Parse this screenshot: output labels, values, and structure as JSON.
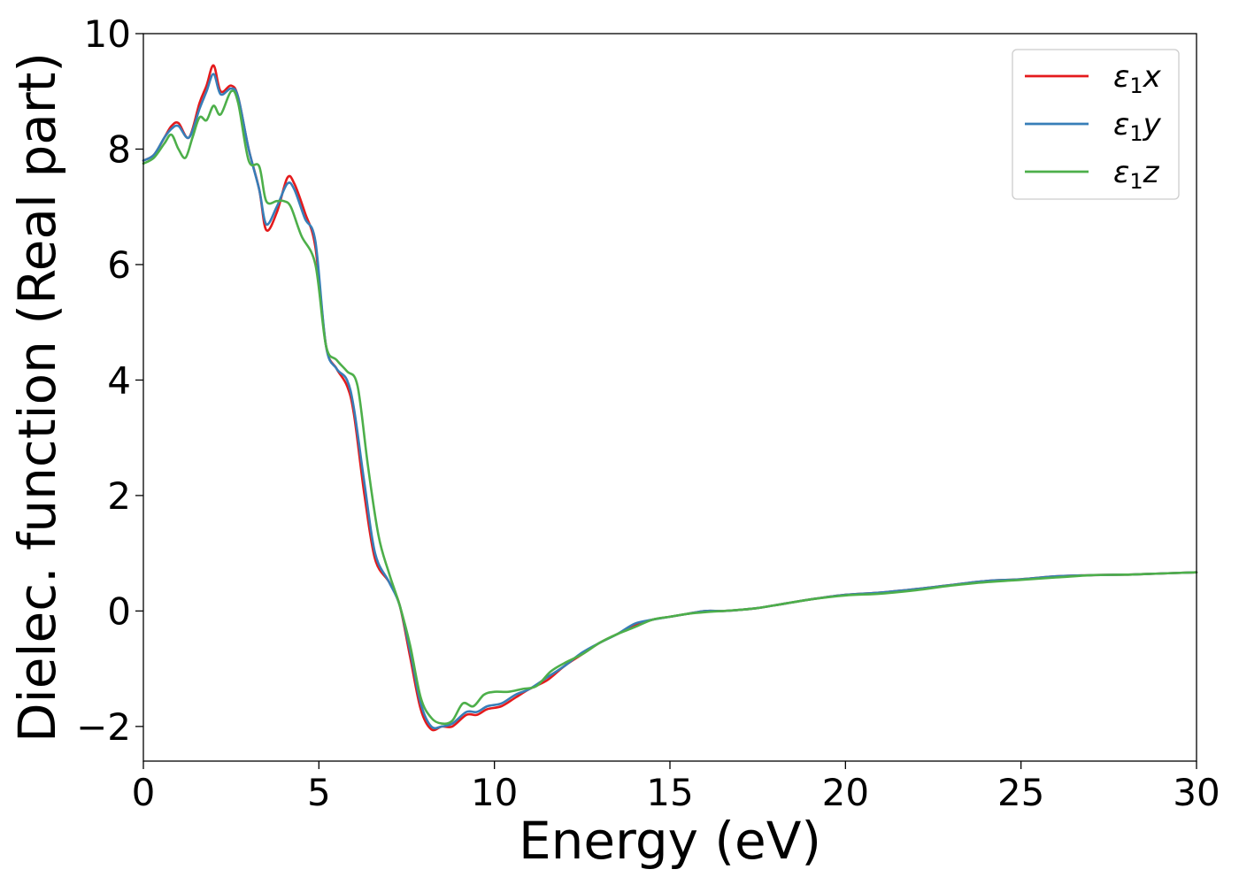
{
  "chart_data": {
    "type": "line",
    "title": "",
    "xlabel": "Energy (eV)",
    "ylabel": "Dielec. function (Real part)",
    "xlim": [
      0,
      30
    ],
    "ylim": [
      -2.6,
      10
    ],
    "xticks": [
      0,
      5,
      10,
      15,
      20,
      25,
      30
    ],
    "xtick_labels": [
      "0",
      "5",
      "10",
      "15",
      "20",
      "25",
      "30"
    ],
    "yticks": [
      -2,
      0,
      2,
      4,
      6,
      8,
      10
    ],
    "ytick_labels": [
      "−2",
      "0",
      "2",
      "4",
      "6",
      "8",
      "10"
    ],
    "grid": false,
    "legend_position": "top-right",
    "series": [
      {
        "name": "ε1x",
        "label_base": "ε",
        "label_sub": "1",
        "label_comp": "x",
        "color": "#e41a1c",
        "x": [
          0,
          0.3,
          0.6,
          0.8,
          1.0,
          1.3,
          1.6,
          1.8,
          2.0,
          2.2,
          2.5,
          2.7,
          3.0,
          3.3,
          3.5,
          3.8,
          4.1,
          4.3,
          4.6,
          4.9,
          5.2,
          5.5,
          5.8,
          6.0,
          6.3,
          6.6,
          7.0,
          7.3,
          7.6,
          7.9,
          8.2,
          8.5,
          8.8,
          9.2,
          9.5,
          9.8,
          10.2,
          10.6,
          11.0,
          11.5,
          12.0,
          12.5,
          13.0,
          13.5,
          14.0,
          14.5,
          15.0,
          15.5,
          16.0,
          16.5,
          17.0,
          17.5,
          18.0,
          19.0,
          20.0,
          21.0,
          22.0,
          23.0,
          24.0,
          25.0,
          26.0,
          27.0,
          28.0,
          29.0,
          30.0
        ],
        "y": [
          7.8,
          7.9,
          8.2,
          8.4,
          8.45,
          8.2,
          8.8,
          9.1,
          9.45,
          9.0,
          9.1,
          8.9,
          8.0,
          7.3,
          6.6,
          6.9,
          7.5,
          7.4,
          6.9,
          6.3,
          4.6,
          4.2,
          3.9,
          3.4,
          2.0,
          0.9,
          0.5,
          0.1,
          -0.8,
          -1.7,
          -2.05,
          -2.0,
          -2.0,
          -1.8,
          -1.8,
          -1.7,
          -1.65,
          -1.5,
          -1.35,
          -1.2,
          -0.95,
          -0.75,
          -0.55,
          -0.4,
          -0.25,
          -0.15,
          -0.1,
          -0.05,
          0.0,
          0.0,
          0.02,
          0.05,
          0.1,
          0.2,
          0.28,
          0.32,
          0.38,
          0.45,
          0.52,
          0.55,
          0.6,
          0.62,
          0.63,
          0.65,
          0.67
        ]
      },
      {
        "name": "ε1y",
        "label_base": "ε",
        "label_sub": "1",
        "label_comp": "y",
        "color": "#377eb8",
        "x": [
          0,
          0.3,
          0.6,
          0.8,
          1.0,
          1.3,
          1.6,
          1.8,
          2.0,
          2.2,
          2.5,
          2.7,
          3.0,
          3.3,
          3.5,
          3.8,
          4.1,
          4.3,
          4.6,
          4.9,
          5.2,
          5.5,
          5.8,
          6.0,
          6.3,
          6.6,
          7.0,
          7.3,
          7.6,
          7.9,
          8.2,
          8.5,
          8.8,
          9.2,
          9.5,
          9.8,
          10.2,
          10.6,
          11.0,
          11.5,
          12.0,
          12.5,
          13.0,
          13.5,
          14.0,
          14.5,
          15.0,
          15.5,
          16.0,
          16.5,
          17.0,
          17.5,
          18.0,
          19.0,
          20.0,
          21.0,
          22.0,
          23.0,
          24.0,
          25.0,
          26.0,
          27.0,
          28.0,
          29.0,
          30.0
        ],
        "y": [
          7.8,
          7.9,
          8.2,
          8.35,
          8.4,
          8.2,
          8.7,
          9.0,
          9.3,
          8.95,
          9.05,
          8.9,
          8.0,
          7.3,
          6.7,
          7.0,
          7.4,
          7.3,
          6.8,
          6.4,
          4.6,
          4.2,
          4.0,
          3.5,
          2.2,
          1.0,
          0.5,
          0.1,
          -0.7,
          -1.6,
          -2.0,
          -2.0,
          -1.95,
          -1.75,
          -1.75,
          -1.65,
          -1.6,
          -1.45,
          -1.35,
          -1.15,
          -0.95,
          -0.72,
          -0.55,
          -0.4,
          -0.22,
          -0.15,
          -0.1,
          -0.05,
          0.0,
          0.0,
          0.02,
          0.05,
          0.1,
          0.2,
          0.28,
          0.32,
          0.38,
          0.45,
          0.52,
          0.55,
          0.6,
          0.62,
          0.63,
          0.65,
          0.67
        ]
      },
      {
        "name": "ε1z",
        "label_base": "ε",
        "label_sub": "1",
        "label_comp": "z",
        "color": "#4daf4a",
        "x": [
          0,
          0.3,
          0.6,
          0.8,
          1.0,
          1.2,
          1.4,
          1.6,
          1.8,
          2.0,
          2.2,
          2.5,
          2.7,
          3.0,
          3.3,
          3.5,
          3.8,
          4.0,
          4.2,
          4.5,
          4.9,
          5.2,
          5.5,
          5.8,
          6.1,
          6.4,
          6.7,
          7.0,
          7.3,
          7.6,
          7.9,
          8.2,
          8.5,
          8.8,
          9.1,
          9.4,
          9.7,
          10.0,
          10.4,
          10.8,
          11.2,
          11.6,
          12.0,
          12.5,
          13.0,
          13.5,
          14.0,
          14.5,
          15.0,
          15.5,
          16.0,
          16.5,
          17.0,
          17.5,
          18.0,
          19.0,
          20.0,
          21.0,
          22.0,
          23.0,
          24.0,
          25.0,
          26.0,
          27.0,
          28.0,
          29.0,
          30.0
        ],
        "y": [
          7.75,
          7.85,
          8.1,
          8.25,
          8.0,
          7.85,
          8.2,
          8.55,
          8.5,
          8.75,
          8.6,
          9.0,
          8.8,
          7.8,
          7.7,
          7.1,
          7.1,
          7.1,
          7.0,
          6.5,
          6.0,
          4.6,
          4.35,
          4.15,
          3.9,
          2.5,
          1.3,
          0.65,
          0.1,
          -0.6,
          -1.5,
          -1.85,
          -1.95,
          -1.9,
          -1.6,
          -1.65,
          -1.45,
          -1.4,
          -1.4,
          -1.35,
          -1.3,
          -1.05,
          -0.9,
          -0.75,
          -0.55,
          -0.4,
          -0.28,
          -0.15,
          -0.1,
          -0.05,
          -0.02,
          0.0,
          0.02,
          0.05,
          0.1,
          0.2,
          0.27,
          0.3,
          0.36,
          0.44,
          0.5,
          0.54,
          0.58,
          0.62,
          0.63,
          0.65,
          0.67
        ]
      }
    ]
  }
}
